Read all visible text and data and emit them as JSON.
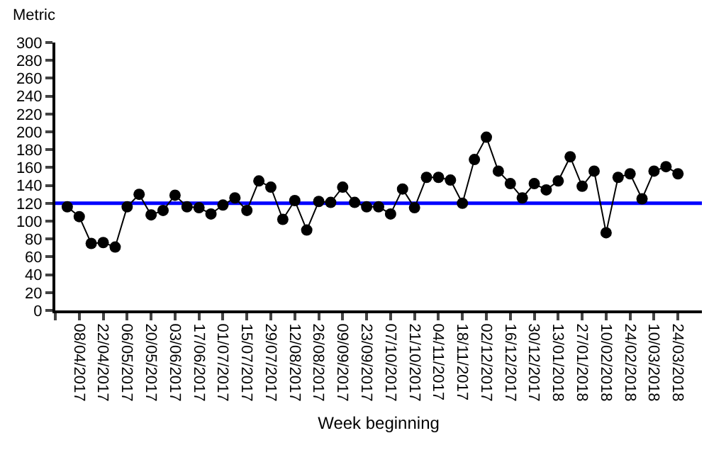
{
  "chart_data": {
    "type": "line",
    "xlabel": "Week beginning",
    "ylabel": "Metric",
    "x": [
      "2017-04-01",
      "2017-04-08",
      "2017-04-15",
      "2017-04-22",
      "2017-04-29",
      "2017-05-06",
      "2017-05-13",
      "2017-05-20",
      "2017-05-27",
      "2017-06-03",
      "2017-06-10",
      "2017-06-17",
      "2017-06-24",
      "2017-07-01",
      "2017-07-08",
      "2017-07-15",
      "2017-07-22",
      "2017-07-29",
      "2017-08-05",
      "2017-08-12",
      "2017-08-19",
      "2017-08-26",
      "2017-09-02",
      "2017-09-09",
      "2017-09-16",
      "2017-09-23",
      "2017-09-30",
      "2017-10-07",
      "2017-10-14",
      "2017-10-21",
      "2017-10-28",
      "2017-11-04",
      "2017-11-11",
      "2017-11-18",
      "2017-11-25",
      "2017-12-02",
      "2017-12-09",
      "2017-12-16",
      "2017-12-23",
      "2017-12-30",
      "2018-01-06",
      "2018-01-13",
      "2018-01-20",
      "2018-01-27",
      "2018-02-03",
      "2018-02-10",
      "2018-02-17",
      "2018-02-24",
      "2018-03-03",
      "2018-03-10",
      "2018-03-17",
      "2018-03-24"
    ],
    "series": [
      {
        "color": "#000000",
        "values": [
          116,
          105,
          75,
          76,
          71,
          116,
          130,
          107,
          112,
          129,
          116,
          115,
          108,
          118,
          126,
          112,
          145,
          138,
          102,
          123,
          90,
          122,
          121,
          138,
          121,
          116,
          116,
          108,
          136,
          115,
          149,
          149,
          146,
          120,
          169,
          194,
          156,
          142,
          126,
          142,
          135,
          145,
          172,
          139,
          156,
          87,
          149,
          153,
          125,
          156,
          161,
          153
        ]
      }
    ],
    "marker": "circle",
    "line_style": "solid",
    "grid": false,
    "legend": false,
    "ylim": [
      0,
      300
    ],
    "yticks": [
      0,
      20,
      40,
      60,
      80,
      100,
      120,
      140,
      160,
      180,
      200,
      220,
      240,
      260,
      280,
      300
    ],
    "xlim": [
      "2017-03-25",
      "2018-04-07"
    ],
    "xticks": [
      {
        "value": "2017-03-25",
        "label": null
      },
      {
        "value": "2017-04-08",
        "label": "08/04/2017"
      },
      {
        "value": "2017-04-22",
        "label": "22/04/2017"
      },
      {
        "value": "2017-05-06",
        "label": "06/05/2017"
      },
      {
        "value": "2017-05-20",
        "label": "20/05/2017"
      },
      {
        "value": "2017-06-03",
        "label": "03/06/2017"
      },
      {
        "value": "2017-06-17",
        "label": "17/06/2017"
      },
      {
        "value": "2017-07-01",
        "label": "01/07/2017"
      },
      {
        "value": "2017-07-15",
        "label": "15/07/2017"
      },
      {
        "value": "2017-07-29",
        "label": "29/07/2017"
      },
      {
        "value": "2017-08-12",
        "label": "12/08/2017"
      },
      {
        "value": "2017-08-26",
        "label": "26/08/2017"
      },
      {
        "value": "2017-09-09",
        "label": "09/09/2017"
      },
      {
        "value": "2017-09-23",
        "label": "23/09/2017"
      },
      {
        "value": "2017-10-07",
        "label": "07/10/2017"
      },
      {
        "value": "2017-10-21",
        "label": "21/10/2017"
      },
      {
        "value": "2017-11-04",
        "label": "04/11/2017"
      },
      {
        "value": "2017-11-18",
        "label": "18/11/2017"
      },
      {
        "value": "2017-12-02",
        "label": "02/12/2017"
      },
      {
        "value": "2017-12-16",
        "label": "16/12/2017"
      },
      {
        "value": "2017-12-30",
        "label": "30/12/2017"
      },
      {
        "value": "2018-01-13",
        "label": "13/01/2018"
      },
      {
        "value": "2018-01-27",
        "label": "27/01/2018"
      },
      {
        "value": "2018-02-10",
        "label": "10/02/2018"
      },
      {
        "value": "2018-02-24",
        "label": "24/02/2018"
      },
      {
        "value": "2018-03-10",
        "label": "10/03/2018"
      },
      {
        "value": "2018-03-24",
        "label": "24/03/2018"
      }
    ],
    "ref_lines": [
      {
        "axis": "y",
        "value": 120,
        "color": "#0000ff",
        "line_style": "solid"
      }
    ]
  }
}
